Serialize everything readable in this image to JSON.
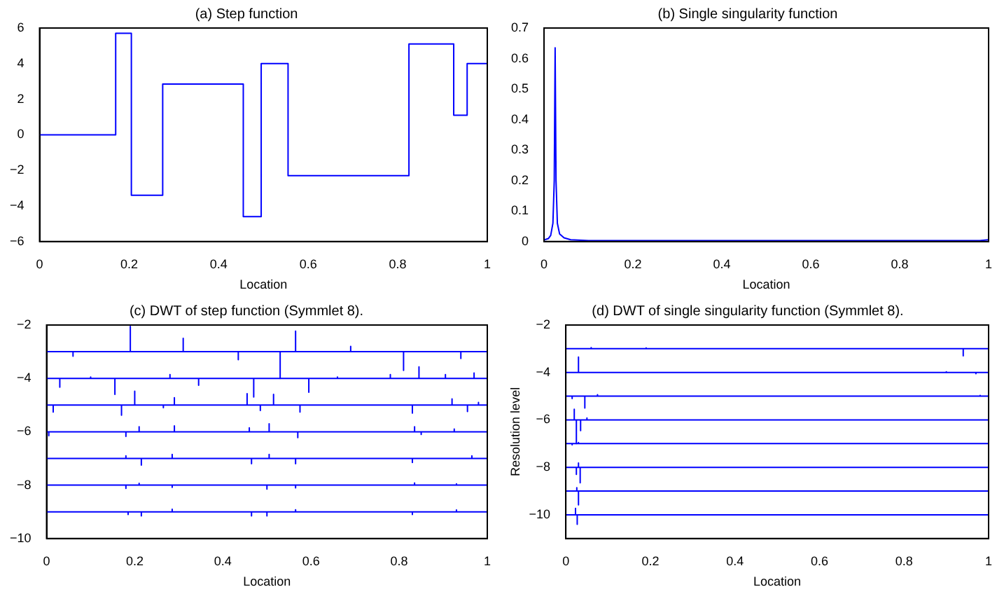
{
  "chart_data": [
    {
      "type": "step",
      "title": "(a) Step function",
      "xlabel": "Location",
      "x": [
        0,
        0.17,
        0.205,
        0.275,
        0.455,
        0.495,
        0.555,
        0.825,
        0.925,
        0.955,
        1
      ],
      "values": [
        0,
        5.7,
        -3.4,
        2.85,
        -4.6,
        4.0,
        -2.3,
        5.1,
        1.1,
        4.0,
        0
      ],
      "color": "#0000ff",
      "xlim": [
        0,
        1
      ],
      "xticks": [
        0,
        0.2,
        0.4,
        0.6,
        0.8,
        1
      ],
      "ylim": [
        -6,
        6
      ],
      "yticks": [
        {
          "value": -6,
          "label": "−6"
        },
        {
          "value": -4,
          "label": "−4"
        },
        {
          "value": -2,
          "label": "−2"
        },
        0,
        2,
        4,
        6
      ]
    },
    {
      "type": "line",
      "title": "(b) Single singularity function",
      "xlabel": "Location",
      "x": [
        0,
        0.01,
        0.015,
        0.02,
        0.023,
        0.025,
        0.027,
        0.03,
        0.035,
        0.045,
        0.06,
        0.1,
        0.98,
        1
      ],
      "values": [
        0.005,
        0.01,
        0.02,
        0.06,
        0.2,
        0.635,
        0.2,
        0.06,
        0.025,
        0.012,
        0.006,
        0.003,
        0.003,
        0.006
      ],
      "color": "#0000ff",
      "xlim": [
        0,
        1
      ],
      "xticks": [
        0,
        0.2,
        0.4,
        0.6,
        0.8,
        1
      ],
      "ylim": [
        0,
        0.7
      ],
      "yticks": [
        0,
        0.1,
        0.2,
        0.3,
        0.4,
        0.5,
        0.6,
        0.7
      ]
    },
    {
      "type": "line",
      "title": "(c) DWT of step function (Symmlet 8).",
      "xlabel": "Location",
      "xlim": [
        0,
        1
      ],
      "xticks": [
        0,
        0.2,
        0.4,
        0.6,
        0.8,
        1
      ],
      "ylim": [
        -10,
        -2
      ],
      "yticks": [
        {
          "value": -10,
          "label": "−10"
        },
        {
          "value": -8,
          "label": "−8"
        },
        {
          "value": -6,
          "label": "−6"
        },
        {
          "value": -4,
          "label": "−4"
        },
        {
          "value": -2,
          "label": "−2"
        }
      ],
      "series": [
        {
          "color": "#0000ff",
          "x": [
            0,
            0.06,
            0.06,
            0.06,
            0.19,
            0.19,
            0.19,
            0.31,
            0.31,
            0.31,
            0.435,
            0.435,
            0.435,
            0.53,
            0.53,
            0.53,
            0.565,
            0.565,
            0.565,
            0.69,
            0.69,
            0.69,
            0.81,
            0.81,
            0.81,
            0.94,
            0.94,
            0.94,
            1
          ],
          "values": [
            -3,
            -3,
            -3.17,
            -3,
            -3,
            -2.05,
            -3,
            -3,
            -2.5,
            -3,
            -3,
            -3.3,
            -3,
            -3,
            -4,
            -3,
            -3,
            -2.23,
            -3,
            -3,
            -2.8,
            -3,
            -3,
            -3.7,
            -3,
            -3,
            -3.25,
            -3,
            -3
          ]
        },
        {
          "color": "#0000ff",
          "x": [
            0,
            0.03,
            0.03,
            0.03,
            0.1,
            0.1,
            0.1,
            0.155,
            0.155,
            0.155,
            0.28,
            0.28,
            0.28,
            0.345,
            0.345,
            0.345,
            0.47,
            0.47,
            0.47,
            0.595,
            0.595,
            0.595,
            0.66,
            0.66,
            0.66,
            0.78,
            0.78,
            0.78,
            0.845,
            0.845,
            0.845,
            0.905,
            0.905,
            0.905,
            0.97,
            0.97,
            0.97,
            1
          ],
          "values": [
            -4,
            -4,
            -4.33,
            -4,
            -4,
            -3.95,
            -4,
            -4,
            -4.6,
            -4,
            -4,
            -3.86,
            -4,
            -4,
            -4.26,
            -4,
            -4,
            -4.7,
            -4,
            -4,
            -4.52,
            -4,
            -4,
            -3.95,
            -4,
            -4,
            -3.86,
            -4,
            -4,
            -3.57,
            -4,
            -4,
            -3.86,
            -4,
            -4,
            -3.8,
            -4,
            -4
          ]
        },
        {
          "color": "#0000ff",
          "x": [
            0,
            0.015,
            0.015,
            0.015,
            0.17,
            0.17,
            0.17,
            0.2,
            0.2,
            0.2,
            0.265,
            0.265,
            0.265,
            0.29,
            0.29,
            0.29,
            0.455,
            0.455,
            0.455,
            0.485,
            0.485,
            0.485,
            0.515,
            0.515,
            0.515,
            0.575,
            0.575,
            0.575,
            0.83,
            0.83,
            0.83,
            0.92,
            0.92,
            0.92,
            0.955,
            0.955,
            0.955,
            0.98,
            0.98,
            0.98,
            1
          ],
          "values": [
            -5,
            -5,
            -5.26,
            -5,
            -5,
            -5.38,
            -5,
            -5,
            -4.48,
            -5,
            -5,
            -5.1,
            -5,
            -5,
            -4.72,
            -5,
            -5,
            -4.57,
            -5,
            -5,
            -5.2,
            -5,
            -5,
            -4.6,
            -5,
            -5,
            -5.26,
            -5,
            -5,
            -5.3,
            -5,
            -5,
            -4.77,
            -5,
            -5,
            -5.24,
            -5,
            -5,
            -4.9,
            -5,
            -5
          ]
        },
        {
          "color": "#0000ff",
          "x": [
            0,
            0.005,
            0.005,
            0.005,
            0.18,
            0.18,
            0.18,
            0.21,
            0.21,
            0.21,
            0.29,
            0.29,
            0.29,
            0.46,
            0.46,
            0.46,
            0.505,
            0.505,
            0.505,
            0.57,
            0.57,
            0.57,
            0.835,
            0.835,
            0.835,
            0.85,
            0.85,
            0.85,
            0.925,
            0.925,
            0.925,
            1
          ],
          "values": [
            -6,
            -6,
            -6.15,
            -6,
            -6,
            -6.17,
            -6,
            -6,
            -5.81,
            -6,
            -6,
            -5.78,
            -6,
            -6,
            -5.85,
            -6,
            -6,
            -5.7,
            -6,
            -6,
            -6.22,
            -6,
            -6,
            -5.81,
            -6,
            -6,
            -6.1,
            -6,
            -6,
            -5.9,
            -6,
            -6
          ]
        },
        {
          "color": "#0000ff",
          "x": [
            0,
            0.18,
            0.18,
            0.18,
            0.215,
            0.215,
            0.215,
            0.285,
            0.285,
            0.285,
            0.465,
            0.465,
            0.465,
            0.505,
            0.505,
            0.505,
            0.565,
            0.565,
            0.565,
            0.83,
            0.83,
            0.83,
            0.965,
            0.965,
            0.965,
            1
          ],
          "values": [
            -7,
            -7,
            -6.9,
            -7,
            -7,
            -7.25,
            -7,
            -7,
            -6.85,
            -7,
            -7,
            -7.2,
            -7,
            -7,
            -6.85,
            -7,
            -7,
            -7.2,
            -7,
            -7,
            -7.15,
            -7,
            -7,
            -6.9,
            -7,
            -7
          ]
        },
        {
          "color": "#0000ff",
          "x": [
            0,
            0.18,
            0.18,
            0.18,
            0.21,
            0.21,
            0.21,
            0.285,
            0.285,
            0.285,
            0.5,
            0.5,
            0.5,
            0.565,
            0.565,
            0.565,
            0.835,
            0.835,
            0.835,
            0.93,
            0.93,
            0.93,
            1
          ],
          "values": [
            -8,
            -8,
            -8.12,
            -8,
            -8,
            -7.93,
            -8,
            -8,
            -8.08,
            -8,
            -8,
            -8.15,
            -8,
            -8,
            -8.1,
            -8,
            -8,
            -7.92,
            -8,
            -8,
            -7.95,
            -8,
            -8
          ]
        },
        {
          "color": "#0000ff",
          "x": [
            0,
            0.185,
            0.185,
            0.185,
            0.215,
            0.215,
            0.215,
            0.285,
            0.285,
            0.285,
            0.465,
            0.465,
            0.465,
            0.5,
            0.5,
            0.5,
            0.565,
            0.565,
            0.565,
            0.83,
            0.83,
            0.83,
            0.93,
            0.93,
            0.93,
            1
          ],
          "values": [
            -9,
            -9,
            -9.1,
            -9,
            -9,
            -9.15,
            -9,
            -9,
            -8.9,
            -9,
            -9,
            -9.15,
            -9,
            -9,
            -9.15,
            -9,
            -9,
            -8.92,
            -9,
            -9,
            -9.1,
            -9,
            -9,
            -8.93,
            -9,
            -9
          ]
        }
      ]
    },
    {
      "type": "line",
      "title": "(d) DWT of single singularity function (Symmlet 8).",
      "xlabel": "Location",
      "ylabel": "Resolution level",
      "xlim": [
        0,
        1
      ],
      "xticks": [
        0,
        0.2,
        0.4,
        0.6,
        0.8,
        1
      ],
      "ylim": [
        -11,
        -2
      ],
      "yticks": [
        {
          "value": -10,
          "label": "−10"
        },
        {
          "value": -8,
          "label": "−8"
        },
        {
          "value": -6,
          "label": "−6"
        },
        {
          "value": -4,
          "label": "−4"
        },
        {
          "value": -2,
          "label": "−2"
        }
      ],
      "series": [
        {
          "color": "#0000ff",
          "x": [
            0,
            0.06,
            0.06,
            0.06,
            0.19,
            0.19,
            0.19,
            0.94,
            0.94,
            0.94,
            1
          ],
          "values": [
            -3,
            -3,
            -2.95,
            -3,
            -3,
            -2.97,
            -3,
            -3,
            -3.3,
            -3,
            -3
          ]
        },
        {
          "color": "#0000ff",
          "x": [
            0,
            0.03,
            0.03,
            0.03,
            0.9,
            0.9,
            0.9,
            0.97,
            0.97,
            0.97,
            1
          ],
          "values": [
            -4,
            -4,
            -3.35,
            -4,
            -4,
            -3.97,
            -4,
            -4,
            -4.05,
            -4,
            -4
          ]
        },
        {
          "color": "#0000ff",
          "x": [
            0,
            0.015,
            0.015,
            0.015,
            0.045,
            0.045,
            0.045,
            0.075,
            0.075,
            0.075,
            0.98,
            0.98,
            0.98,
            1
          ],
          "values": [
            -5,
            -5,
            -5.1,
            -5,
            -5,
            -5.5,
            -5,
            -5,
            -4.94,
            -5,
            -5,
            -4.97,
            -5,
            -5
          ]
        },
        {
          "color": "#0000ff",
          "x": [
            0,
            0.02,
            0.02,
            0.02,
            0.025,
            0.025,
            0.025,
            0.035,
            0.035,
            0.035,
            0.05,
            0.05,
            0.05,
            1
          ],
          "values": [
            -6,
            -6,
            -5.55,
            -6,
            -6,
            -7,
            -6,
            -6,
            -6.45,
            -6,
            -6,
            -5.92,
            -6,
            -6
          ]
        },
        {
          "color": "#0000ff",
          "x": [
            0,
            0.015,
            0.015,
            0.015,
            0.03,
            0.03,
            0.03,
            1
          ],
          "values": [
            -7,
            -7,
            -7.05,
            -7,
            -7,
            -6.95,
            -7,
            -7
          ]
        },
        {
          "color": "#0000ff",
          "x": [
            0,
            0.025,
            0.025,
            0.025,
            0.03,
            0.03,
            0.03,
            0.034,
            0.034,
            0.034,
            1
          ],
          "values": [
            -8,
            -8,
            -8.3,
            -8,
            -8,
            -7.82,
            -8,
            -8,
            -8.65,
            -8,
            -8
          ]
        },
        {
          "color": "#0000ff",
          "x": [
            0,
            0.026,
            0.026,
            0.026,
            0.03,
            0.03,
            0.03,
            1
          ],
          "values": [
            -9,
            -9,
            -8.86,
            -9,
            -9,
            -9.58,
            -9,
            -9
          ]
        },
        {
          "color": "#0000ff",
          "x": [
            0,
            0.023,
            0.023,
            0.023,
            0.027,
            0.027,
            0.027,
            1
          ],
          "values": [
            -10,
            -10,
            -9.73,
            -10,
            -10,
            -10.4,
            -10,
            -10
          ]
        }
      ]
    }
  ]
}
